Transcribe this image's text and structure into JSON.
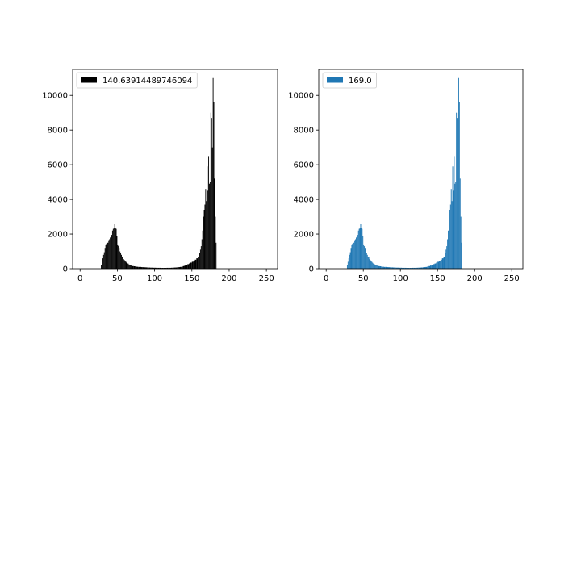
{
  "chart_data": [
    {
      "type": "bar",
      "subtype": "histogram",
      "legend": "140.63914489746094",
      "legend_position": "upper left",
      "color": "#000000",
      "title": "",
      "xlabel": "",
      "ylabel": "",
      "xlim": [
        -10,
        265
      ],
      "ylim": [
        0,
        11500
      ],
      "xticks": [
        "0",
        "50",
        "100",
        "150",
        "200",
        "250"
      ],
      "yticks": [
        "0",
        "2000",
        "4000",
        "6000",
        "8000",
        "10000"
      ],
      "grid": false,
      "bins": [
        {
          "x": 28,
          "y": 200
        },
        {
          "x": 29,
          "y": 400
        },
        {
          "x": 30,
          "y": 600
        },
        {
          "x": 31,
          "y": 800
        },
        {
          "x": 32,
          "y": 950
        },
        {
          "x": 33,
          "y": 1200
        },
        {
          "x": 34,
          "y": 1400
        },
        {
          "x": 35,
          "y": 1450
        },
        {
          "x": 36,
          "y": 1500
        },
        {
          "x": 37,
          "y": 1500
        },
        {
          "x": 38,
          "y": 1600
        },
        {
          "x": 39,
          "y": 1700
        },
        {
          "x": 40,
          "y": 1800
        },
        {
          "x": 41,
          "y": 1850
        },
        {
          "x": 42,
          "y": 1950
        },
        {
          "x": 43,
          "y": 2200
        },
        {
          "x": 44,
          "y": 2300
        },
        {
          "x": 45,
          "y": 2350
        },
        {
          "x": 46,
          "y": 2600
        },
        {
          "x": 47,
          "y": 2350
        },
        {
          "x": 48,
          "y": 2300
        },
        {
          "x": 49,
          "y": 1900
        },
        {
          "x": 50,
          "y": 1400
        },
        {
          "x": 51,
          "y": 1300
        },
        {
          "x": 52,
          "y": 1200
        },
        {
          "x": 53,
          "y": 1000
        },
        {
          "x": 54,
          "y": 900
        },
        {
          "x": 55,
          "y": 800
        },
        {
          "x": 56,
          "y": 700
        },
        {
          "x": 57,
          "y": 650
        },
        {
          "x": 58,
          "y": 550
        },
        {
          "x": 59,
          "y": 500
        },
        {
          "x": 60,
          "y": 450
        },
        {
          "x": 61,
          "y": 400
        },
        {
          "x": 62,
          "y": 350
        },
        {
          "x": 63,
          "y": 300
        },
        {
          "x": 64,
          "y": 300
        },
        {
          "x": 65,
          "y": 250
        },
        {
          "x": 66,
          "y": 220
        },
        {
          "x": 67,
          "y": 200
        },
        {
          "x": 68,
          "y": 180
        },
        {
          "x": 69,
          "y": 170
        },
        {
          "x": 70,
          "y": 150
        },
        {
          "x": 72,
          "y": 140
        },
        {
          "x": 74,
          "y": 120
        },
        {
          "x": 76,
          "y": 110
        },
        {
          "x": 78,
          "y": 100
        },
        {
          "x": 80,
          "y": 100
        },
        {
          "x": 82,
          "y": 90
        },
        {
          "x": 84,
          "y": 85
        },
        {
          "x": 86,
          "y": 80
        },
        {
          "x": 88,
          "y": 75
        },
        {
          "x": 90,
          "y": 70
        },
        {
          "x": 92,
          "y": 65
        },
        {
          "x": 94,
          "y": 60
        },
        {
          "x": 96,
          "y": 60
        },
        {
          "x": 98,
          "y": 55
        },
        {
          "x": 100,
          "y": 55
        },
        {
          "x": 102,
          "y": 50
        },
        {
          "x": 104,
          "y": 50
        },
        {
          "x": 106,
          "y": 50
        },
        {
          "x": 108,
          "y": 45
        },
        {
          "x": 110,
          "y": 45
        },
        {
          "x": 112,
          "y": 45
        },
        {
          "x": 114,
          "y": 45
        },
        {
          "x": 116,
          "y": 50
        },
        {
          "x": 118,
          "y": 50
        },
        {
          "x": 120,
          "y": 50
        },
        {
          "x": 122,
          "y": 55
        },
        {
          "x": 124,
          "y": 60
        },
        {
          "x": 126,
          "y": 65
        },
        {
          "x": 128,
          "y": 70
        },
        {
          "x": 130,
          "y": 80
        },
        {
          "x": 132,
          "y": 90
        },
        {
          "x": 134,
          "y": 100
        },
        {
          "x": 136,
          "y": 120
        },
        {
          "x": 138,
          "y": 150
        },
        {
          "x": 140,
          "y": 180
        },
        {
          "x": 142,
          "y": 220
        },
        {
          "x": 144,
          "y": 260
        },
        {
          "x": 146,
          "y": 300
        },
        {
          "x": 148,
          "y": 350
        },
        {
          "x": 150,
          "y": 400
        },
        {
          "x": 152,
          "y": 450
        },
        {
          "x": 154,
          "y": 520
        },
        {
          "x": 156,
          "y": 600
        },
        {
          "x": 158,
          "y": 700
        },
        {
          "x": 160,
          "y": 900
        },
        {
          "x": 161,
          "y": 1100
        },
        {
          "x": 162,
          "y": 1300
        },
        {
          "x": 163,
          "y": 1700
        },
        {
          "x": 164,
          "y": 2200
        },
        {
          "x": 165,
          "y": 3000
        },
        {
          "x": 166,
          "y": 3400
        },
        {
          "x": 167,
          "y": 3700
        },
        {
          "x": 168,
          "y": 4600
        },
        {
          "x": 169,
          "y": 3900
        },
        {
          "x": 170,
          "y": 5900
        },
        {
          "x": 171,
          "y": 4500
        },
        {
          "x": 172,
          "y": 6500
        },
        {
          "x": 173,
          "y": 4900
        },
        {
          "x": 174,
          "y": 5000
        },
        {
          "x": 175,
          "y": 9000
        },
        {
          "x": 176,
          "y": 8700
        },
        {
          "x": 177,
          "y": 7000
        },
        {
          "x": 178,
          "y": 11000
        },
        {
          "x": 179,
          "y": 9600
        },
        {
          "x": 180,
          "y": 5200
        },
        {
          "x": 181,
          "y": 3000
        },
        {
          "x": 182,
          "y": 1500
        }
      ]
    },
    {
      "type": "bar",
      "subtype": "histogram",
      "legend": "169.0",
      "legend_position": "upper left",
      "color": "#1f77b4",
      "title": "",
      "xlabel": "",
      "ylabel": "",
      "xlim": [
        -10,
        265
      ],
      "ylim": [
        0,
        11500
      ],
      "xticks": [
        "0",
        "50",
        "100",
        "150",
        "200",
        "250"
      ],
      "yticks": [
        "0",
        "2000",
        "4000",
        "6000",
        "8000",
        "10000"
      ],
      "grid": false,
      "bins": [
        {
          "x": 28,
          "y": 200
        },
        {
          "x": 29,
          "y": 400
        },
        {
          "x": 30,
          "y": 600
        },
        {
          "x": 31,
          "y": 800
        },
        {
          "x": 32,
          "y": 950
        },
        {
          "x": 33,
          "y": 1200
        },
        {
          "x": 34,
          "y": 1400
        },
        {
          "x": 35,
          "y": 1450
        },
        {
          "x": 36,
          "y": 1500
        },
        {
          "x": 37,
          "y": 1500
        },
        {
          "x": 38,
          "y": 1600
        },
        {
          "x": 39,
          "y": 1700
        },
        {
          "x": 40,
          "y": 1800
        },
        {
          "x": 41,
          "y": 1850
        },
        {
          "x": 42,
          "y": 1950
        },
        {
          "x": 43,
          "y": 2200
        },
        {
          "x": 44,
          "y": 2300
        },
        {
          "x": 45,
          "y": 2350
        },
        {
          "x": 46,
          "y": 2600
        },
        {
          "x": 47,
          "y": 2350
        },
        {
          "x": 48,
          "y": 2300
        },
        {
          "x": 49,
          "y": 1900
        },
        {
          "x": 50,
          "y": 1400
        },
        {
          "x": 51,
          "y": 1300
        },
        {
          "x": 52,
          "y": 1200
        },
        {
          "x": 53,
          "y": 1000
        },
        {
          "x": 54,
          "y": 900
        },
        {
          "x": 55,
          "y": 800
        },
        {
          "x": 56,
          "y": 700
        },
        {
          "x": 57,
          "y": 650
        },
        {
          "x": 58,
          "y": 550
        },
        {
          "x": 59,
          "y": 500
        },
        {
          "x": 60,
          "y": 450
        },
        {
          "x": 61,
          "y": 400
        },
        {
          "x": 62,
          "y": 350
        },
        {
          "x": 63,
          "y": 300
        },
        {
          "x": 64,
          "y": 300
        },
        {
          "x": 65,
          "y": 250
        },
        {
          "x": 66,
          "y": 220
        },
        {
          "x": 67,
          "y": 200
        },
        {
          "x": 68,
          "y": 180
        },
        {
          "x": 69,
          "y": 170
        },
        {
          "x": 70,
          "y": 150
        },
        {
          "x": 72,
          "y": 140
        },
        {
          "x": 74,
          "y": 120
        },
        {
          "x": 76,
          "y": 110
        },
        {
          "x": 78,
          "y": 100
        },
        {
          "x": 80,
          "y": 100
        },
        {
          "x": 82,
          "y": 90
        },
        {
          "x": 84,
          "y": 85
        },
        {
          "x": 86,
          "y": 80
        },
        {
          "x": 88,
          "y": 75
        },
        {
          "x": 90,
          "y": 70
        },
        {
          "x": 92,
          "y": 65
        },
        {
          "x": 94,
          "y": 60
        },
        {
          "x": 96,
          "y": 60
        },
        {
          "x": 98,
          "y": 55
        },
        {
          "x": 100,
          "y": 55
        },
        {
          "x": 102,
          "y": 50
        },
        {
          "x": 104,
          "y": 50
        },
        {
          "x": 106,
          "y": 50
        },
        {
          "x": 108,
          "y": 45
        },
        {
          "x": 110,
          "y": 45
        },
        {
          "x": 112,
          "y": 45
        },
        {
          "x": 114,
          "y": 45
        },
        {
          "x": 116,
          "y": 50
        },
        {
          "x": 118,
          "y": 50
        },
        {
          "x": 120,
          "y": 50
        },
        {
          "x": 122,
          "y": 55
        },
        {
          "x": 124,
          "y": 60
        },
        {
          "x": 126,
          "y": 65
        },
        {
          "x": 128,
          "y": 70
        },
        {
          "x": 130,
          "y": 80
        },
        {
          "x": 132,
          "y": 90
        },
        {
          "x": 134,
          "y": 100
        },
        {
          "x": 136,
          "y": 120
        },
        {
          "x": 138,
          "y": 150
        },
        {
          "x": 140,
          "y": 180
        },
        {
          "x": 142,
          "y": 220
        },
        {
          "x": 144,
          "y": 260
        },
        {
          "x": 146,
          "y": 300
        },
        {
          "x": 148,
          "y": 350
        },
        {
          "x": 150,
          "y": 400
        },
        {
          "x": 152,
          "y": 450
        },
        {
          "x": 154,
          "y": 520
        },
        {
          "x": 156,
          "y": 600
        },
        {
          "x": 158,
          "y": 700
        },
        {
          "x": 160,
          "y": 900
        },
        {
          "x": 161,
          "y": 1100
        },
        {
          "x": 162,
          "y": 1300
        },
        {
          "x": 163,
          "y": 1700
        },
        {
          "x": 164,
          "y": 2200
        },
        {
          "x": 165,
          "y": 3000
        },
        {
          "x": 166,
          "y": 3400
        },
        {
          "x": 167,
          "y": 3700
        },
        {
          "x": 168,
          "y": 4600
        },
        {
          "x": 169,
          "y": 3900
        },
        {
          "x": 170,
          "y": 5900
        },
        {
          "x": 171,
          "y": 4500
        },
        {
          "x": 172,
          "y": 6500
        },
        {
          "x": 173,
          "y": 4900
        },
        {
          "x": 174,
          "y": 5000
        },
        {
          "x": 175,
          "y": 9000
        },
        {
          "x": 176,
          "y": 8700
        },
        {
          "x": 177,
          "y": 7000
        },
        {
          "x": 178,
          "y": 11000
        },
        {
          "x": 179,
          "y": 9600
        },
        {
          "x": 180,
          "y": 5200
        },
        {
          "x": 181,
          "y": 3000
        },
        {
          "x": 182,
          "y": 1500
        }
      ]
    }
  ]
}
